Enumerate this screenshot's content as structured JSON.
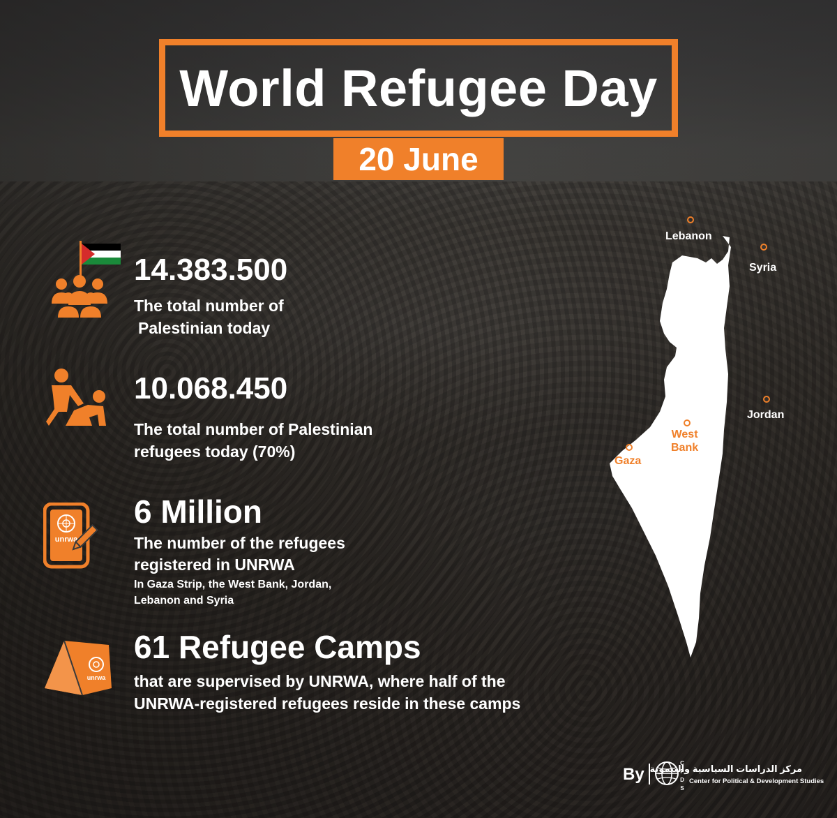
{
  "title": "World Refugee Day",
  "date": "20 June",
  "colors": {
    "accent": "#f0802a",
    "text": "#ffffff"
  },
  "stats": [
    {
      "icon": "people-group-flag-icon",
      "value": "14.383.500",
      "lines": [
        "The total number of",
        "Palestinian today"
      ]
    },
    {
      "icon": "helping-person-icon",
      "value": "10.068.450",
      "lines": [
        "The total number of Palestinian",
        "refugees today (70%)"
      ]
    },
    {
      "icon": "unrwa-registration-icon",
      "value": "6 Million",
      "lines": [
        "The number of the refugees",
        "registered in UNRWA"
      ],
      "small_lines": [
        "In Gaza Strip, the West Bank, Jordan,",
        "Lebanon and Syria"
      ],
      "badge": "unrwa"
    },
    {
      "icon": "tent-icon",
      "value": "61 Refugee Camps",
      "lines": [
        "that are supervised by UNRWA, where half of the",
        "UNRWA-registered refugees reside in these camps"
      ],
      "badge": "unrwa"
    }
  ],
  "map": {
    "labels": {
      "lebanon": "Lebanon",
      "syria": "Syria",
      "jordan": "Jordan",
      "west_bank_1": "West",
      "west_bank_2": "Bank",
      "gaza": "Gaza"
    }
  },
  "footer": {
    "by": "By",
    "logo_text": "CPDS",
    "org_arabic": "مركز الدراسات السياسية والتنموية",
    "org_english": "Center for Political & Development Studies"
  }
}
